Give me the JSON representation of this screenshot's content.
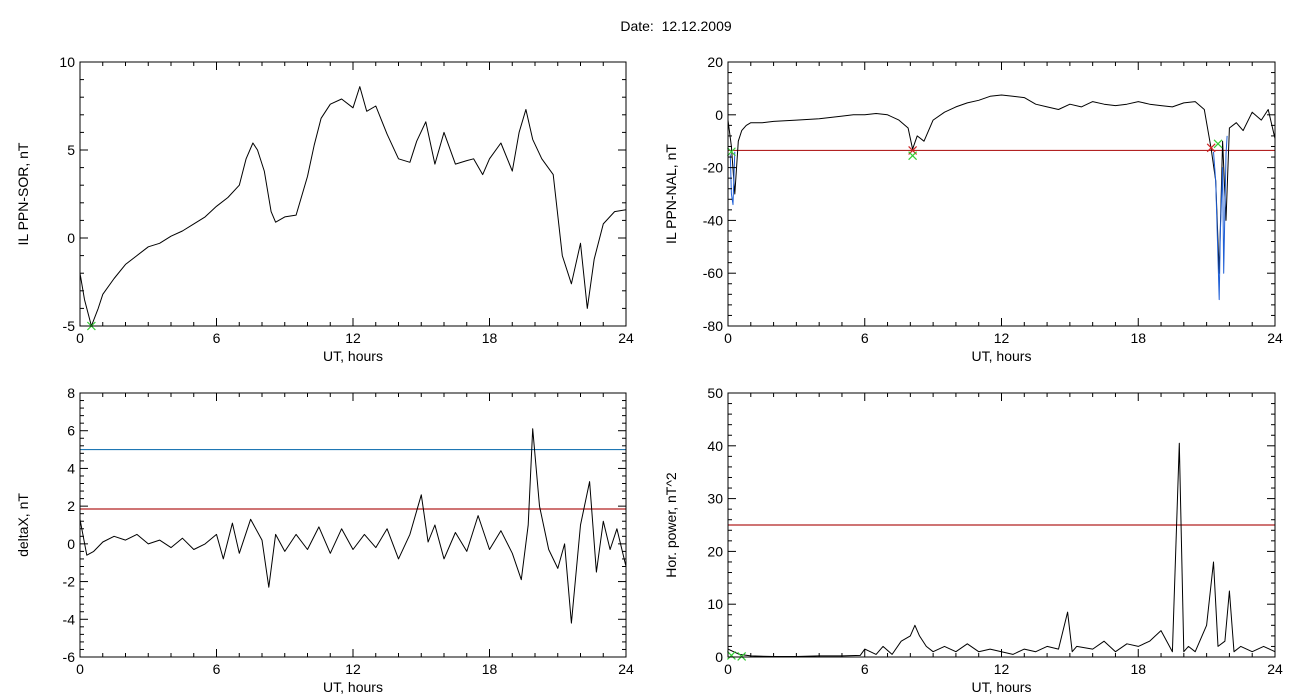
{
  "title": "Date:  12.12.2009",
  "colors": {
    "trace": "#000000",
    "threshold_red": "#b22222",
    "threshold_blue": "#1f77b4",
    "spike_blue": "#1f5fd6",
    "marker_green": "#33cc33",
    "marker_red": "#cc2222"
  },
  "chart_data": [
    {
      "type": "line",
      "ylabel": "IL PPN-SOR, nT",
      "xlabel": "UT, hours",
      "xlim": [
        0,
        24
      ],
      "ylim": [
        -5,
        10
      ],
      "xticks": [
        0,
        6,
        12,
        18,
        24
      ],
      "yticks": [
        -5,
        0,
        5,
        10
      ],
      "grid": false,
      "series": [
        {
          "color": "#000000",
          "x": [
            0,
            0.2,
            0.5,
            0.8,
            1,
            1.5,
            2,
            2.5,
            3,
            3.5,
            4,
            4.5,
            5,
            5.5,
            6,
            6.5,
            7,
            7.3,
            7.6,
            7.8,
            8.1,
            8.4,
            8.6,
            9,
            9.5,
            10,
            10.3,
            10.6,
            11,
            11.5,
            12,
            12.3,
            12.6,
            13,
            13.5,
            14,
            14.5,
            14.8,
            15.2,
            15.6,
            16,
            16.5,
            17,
            17.3,
            17.7,
            18,
            18.5,
            19,
            19.3,
            19.6,
            19.9,
            20.3,
            20.8,
            21.2,
            21.6,
            22,
            22.3,
            22.6,
            23,
            23.5,
            24
          ],
          "y": [
            -2,
            -3.5,
            -5,
            -4,
            -3.2,
            -2.3,
            -1.5,
            -1,
            -0.5,
            -0.3,
            0.1,
            0.4,
            0.8,
            1.2,
            1.8,
            2.3,
            3,
            4.5,
            5.4,
            5,
            3.8,
            1.5,
            0.9,
            1.2,
            1.3,
            3.5,
            5.3,
            6.8,
            7.6,
            7.9,
            7.4,
            8.6,
            7.2,
            7.5,
            5.9,
            4.5,
            4.3,
            5.5,
            6.6,
            4.2,
            6,
            4.2,
            4.4,
            4.5,
            3.6,
            4.5,
            5.4,
            3.8,
            6,
            7.3,
            5.6,
            4.5,
            3.6,
            -1,
            -2.6,
            -0.3,
            -4,
            -1.2,
            0.8,
            1.5,
            1.6
          ]
        }
      ],
      "markers": [
        {
          "x": 0.5,
          "y": -5,
          "symbol": "x",
          "color": "#33cc33"
        }
      ]
    },
    {
      "type": "line",
      "ylabel": "IL PPN-NAL, nT",
      "xlabel": "UT, hours",
      "xlim": [
        0,
        24
      ],
      "ylim": [
        -80,
        20
      ],
      "xticks": [
        0,
        6,
        12,
        18,
        24
      ],
      "yticks": [
        -80,
        -60,
        -40,
        -20,
        0,
        20
      ],
      "grid": false,
      "hlines": [
        {
          "y": -13.5,
          "color": "#b22222"
        }
      ],
      "series": [
        {
          "color": "#000000",
          "x": [
            0,
            0.15,
            0.3,
            0.45,
            0.6,
            0.8,
            1,
            1.5,
            2,
            3,
            4,
            5,
            5.5,
            6,
            6.5,
            7,
            7.5,
            7.9,
            8.1,
            8.3,
            8.6,
            9,
            9.5,
            10,
            10.5,
            11,
            11.5,
            12,
            12.5,
            13,
            13.5,
            14,
            14.5,
            15,
            15.5,
            16,
            16.5,
            17,
            17.5,
            18,
            18.5,
            19,
            19.5,
            20,
            20.5,
            20.9,
            21.2,
            21.4,
            21.55,
            21.7,
            21.85,
            22,
            22.3,
            22.6,
            23,
            23.4,
            23.7,
            24
          ],
          "y": [
            -2,
            -12,
            -30,
            -10,
            -6,
            -4,
            -3,
            -3,
            -2.5,
            -2,
            -1.5,
            -0.5,
            0,
            0,
            0.5,
            0,
            -2,
            -5,
            -13,
            -8,
            -10,
            -2,
            1,
            3,
            4.5,
            5.5,
            7,
            7.5,
            7,
            6.5,
            4,
            3,
            2,
            4,
            3,
            5,
            4,
            3.5,
            4,
            5,
            4,
            3.5,
            3,
            4.5,
            5,
            2,
            -13,
            -25,
            -60,
            -10,
            -40,
            -5,
            -3,
            -6,
            1,
            -2,
            2,
            -9
          ]
        },
        {
          "color": "#1f5fd6",
          "x": [
            21.3,
            21.4,
            21.55,
            21.6,
            21.7,
            21.75,
            21.85,
            21.9
          ],
          "y": [
            -14,
            -25,
            -70,
            -45,
            -20,
            -60,
            -15,
            -8
          ]
        },
        {
          "color": "#1f5fd6",
          "x": [
            0.1,
            0.15,
            0.22,
            0.3
          ],
          "y": [
            -15,
            -30,
            -34,
            -14
          ]
        }
      ],
      "markers": [
        {
          "x": 0.15,
          "y": -14,
          "symbol": "x",
          "color": "#33cc33"
        },
        {
          "x": 8.1,
          "y": -13.5,
          "symbol": "x",
          "color": "#cc2222"
        },
        {
          "x": 8.1,
          "y": -15.5,
          "symbol": "x",
          "color": "#33cc33"
        },
        {
          "x": 21.2,
          "y": -12.5,
          "symbol": "x",
          "color": "#cc2222"
        },
        {
          "x": 21.5,
          "y": -11,
          "symbol": "x",
          "color": "#33cc33"
        }
      ]
    },
    {
      "type": "line",
      "ylabel": "deltaX, nT",
      "xlabel": "UT, hours",
      "xlim": [
        0,
        24
      ],
      "ylim": [
        -6,
        8
      ],
      "xticks": [
        0,
        6,
        12,
        18,
        24
      ],
      "yticks": [
        -6,
        -4,
        -2,
        0,
        2,
        4,
        6,
        8
      ],
      "grid": false,
      "hlines": [
        {
          "y": 5.0,
          "color": "#1f77b4"
        },
        {
          "y": 1.85,
          "color": "#b22222"
        }
      ],
      "series": [
        {
          "color": "#000000",
          "x": [
            0,
            0.3,
            0.6,
            1,
            1.5,
            2,
            2.5,
            3,
            3.5,
            4,
            4.5,
            5,
            5.5,
            6,
            6.3,
            6.7,
            7,
            7.5,
            8,
            8.3,
            8.6,
            9,
            9.5,
            10,
            10.5,
            11,
            11.5,
            12,
            12.5,
            13,
            13.5,
            14,
            14.5,
            15,
            15.3,
            15.6,
            16,
            16.5,
            17,
            17.5,
            18,
            18.5,
            19,
            19.4,
            19.7,
            19.9,
            20.2,
            20.6,
            21,
            21.3,
            21.6,
            22,
            22.4,
            22.7,
            23,
            23.3,
            23.6,
            24
          ],
          "y": [
            1.3,
            -0.6,
            -0.4,
            0.1,
            0.4,
            0.2,
            0.5,
            0.0,
            0.2,
            -0.2,
            0.3,
            -0.3,
            0.0,
            0.5,
            -0.8,
            1.1,
            -0.5,
            1.3,
            0.2,
            -2.3,
            0.5,
            -0.4,
            0.5,
            -0.3,
            0.9,
            -0.5,
            0.8,
            -0.3,
            0.5,
            -0.2,
            0.8,
            -0.8,
            0.5,
            2.6,
            0.1,
            1.0,
            -0.8,
            0.6,
            -0.4,
            1.5,
            -0.3,
            0.7,
            -0.5,
            -1.9,
            1.0,
            6.1,
            2.0,
            -0.3,
            -1.3,
            0.0,
            -4.2,
            1.0,
            3.3,
            -1.5,
            1.2,
            -0.3,
            0.8,
            -1.2
          ]
        }
      ]
    },
    {
      "type": "line",
      "ylabel": "Hor. power, nT^2",
      "xlabel": "UT, hours",
      "xlim": [
        0,
        24
      ],
      "ylim": [
        0,
        50
      ],
      "xticks": [
        0,
        6,
        12,
        18,
        24
      ],
      "yticks": [
        0,
        10,
        20,
        30,
        40,
        50
      ],
      "grid": false,
      "hlines": [
        {
          "y": 25,
          "color": "#b22222"
        }
      ],
      "series": [
        {
          "color": "#000000",
          "x": [
            0,
            0.5,
            1,
            2,
            3,
            4,
            5,
            5.8,
            6,
            6.5,
            6.8,
            7.2,
            7.6,
            8,
            8.2,
            8.4,
            8.7,
            9,
            9.5,
            10,
            10.5,
            11,
            11.5,
            12,
            12.5,
            13,
            13.5,
            14,
            14.5,
            14.9,
            15.1,
            15.3,
            16,
            16.5,
            17,
            17.5,
            18,
            18.5,
            19,
            19.5,
            19.8,
            20,
            20.2,
            20.5,
            21,
            21.3,
            21.5,
            21.8,
            22,
            22.2,
            22.5,
            23,
            23.5,
            24
          ],
          "y": [
            1.5,
            0.5,
            0.2,
            0.1,
            0.1,
            0.2,
            0.2,
            0.3,
            1.5,
            0.5,
            2,
            0.5,
            3,
            4,
            6,
            4,
            2,
            1,
            2,
            1,
            2.5,
            1,
            1.5,
            1,
            0.5,
            1.5,
            1,
            2,
            1.5,
            8.5,
            1,
            2,
            1.5,
            3,
            1,
            2.5,
            2,
            3,
            5,
            1,
            40.5,
            1,
            2,
            1,
            6,
            18,
            2,
            3,
            12.5,
            1,
            2,
            1,
            2,
            1
          ]
        }
      ],
      "markers": [
        {
          "x": 0.15,
          "y": 0.3,
          "symbol": "x",
          "color": "#33cc33"
        },
        {
          "x": 0.6,
          "y": 0.1,
          "symbol": "x",
          "color": "#33cc33"
        }
      ]
    }
  ]
}
